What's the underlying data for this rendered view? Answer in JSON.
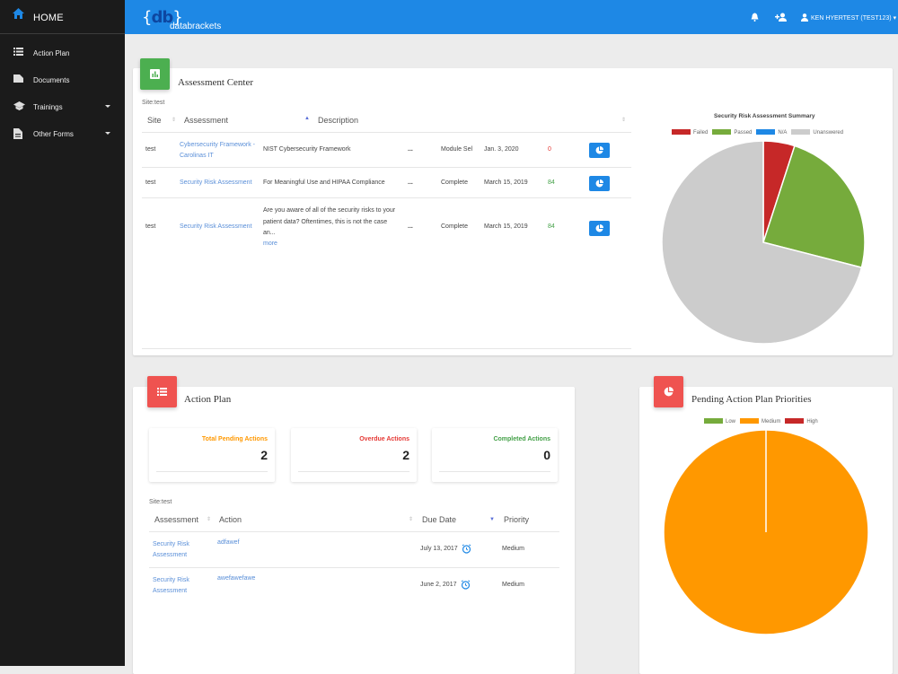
{
  "sidebar": {
    "home_label": "HOME",
    "items": [
      {
        "label": "Action Plan",
        "icon": "list-icon"
      },
      {
        "label": "Documents",
        "icon": "folder-icon"
      },
      {
        "label": "Trainings",
        "icon": "school-icon",
        "has_dropdown": true
      },
      {
        "label": "Other Forms",
        "icon": "document-icon",
        "has_dropdown": true
      }
    ]
  },
  "header": {
    "logo_mark": "db",
    "logo_text": "databrackets",
    "user_label": "KEN HYERTEST (TEST123)",
    "color": "#1e88e5"
  },
  "assessment_center": {
    "title": "Assessment Center",
    "site_label": "Site:",
    "site_value": "test",
    "columns": [
      "Site",
      "Assessment",
      "Description"
    ],
    "rows": [
      {
        "site": "test",
        "assessment": "Cybersecurity Framework - Carolinas IT",
        "description": "NIST Cybersecurity Framework",
        "more": "...",
        "status": "Module Sel",
        "date": "Jan. 3, 2020",
        "score": "0",
        "score_color": "#e53935"
      },
      {
        "site": "test",
        "assessment": "Security Risk Assessment",
        "description": "For Meaningful Use and HIPAA Compliance",
        "more": "...",
        "status": "Complete",
        "date": "March 15, 2019",
        "score": "84",
        "score_color": "#43a047"
      },
      {
        "site": "test",
        "assessment": "Security Risk Assessment",
        "description": "Are you aware of all of the security risks to your patient data? Oftentimes, this is not the case an...",
        "more_link": "more",
        "more": "...",
        "status": "Complete",
        "date": "March 15, 2019",
        "score": "84",
        "score_color": "#43a047"
      }
    ]
  },
  "risk_summary": {
    "title": "Security Risk Assessment Summary",
    "legend": [
      {
        "label": "Failed",
        "color": "#c62828"
      },
      {
        "label": "Passed",
        "color": "#76ab3c"
      },
      {
        "label": "N/A",
        "color": "#1e88e5"
      },
      {
        "label": "Unanswered",
        "color": "#cccccc"
      }
    ]
  },
  "chart_data": [
    {
      "type": "pie",
      "title": "Security Risk Assessment Summary",
      "categories": [
        "Failed",
        "Passed",
        "N/A",
        "Unanswered"
      ],
      "values": [
        5,
        24,
        0,
        71
      ],
      "colors": [
        "#c62828",
        "#76ab3c",
        "#1e88e5",
        "#cccccc"
      ]
    },
    {
      "type": "pie",
      "title": "",
      "categories": [
        "Low",
        "Medium",
        "High"
      ],
      "values": [
        0,
        2,
        0
      ],
      "colors": [
        "#76ab3c",
        "#ff9800",
        "#c62828"
      ]
    }
  ],
  "action_plan": {
    "title": "Action Plan",
    "stats": [
      {
        "label": "Total Pending Actions",
        "value": "2",
        "color": "#ff9800"
      },
      {
        "label": "Overdue Actions",
        "value": "2",
        "color": "#e53935"
      },
      {
        "label": "Completed Actions",
        "value": "0",
        "color": "#43a047"
      }
    ],
    "site_label": "Site:",
    "site_value": "test",
    "columns": [
      "Assessment",
      "Action",
      "Due Date",
      "Priority"
    ],
    "rows": [
      {
        "assessment": "Security Risk Assessment",
        "action": "adfawef",
        "due": "July 13, 2017",
        "priority": "Medium"
      },
      {
        "assessment": "Security Risk Assessment",
        "action": "awefawefawe",
        "due": "June 2, 2017",
        "priority": "Medium"
      }
    ]
  },
  "priorities": {
    "title": "Pending Action Plan Priorities",
    "legend": [
      {
        "label": "Low",
        "color": "#76ab3c"
      },
      {
        "label": "Medium",
        "color": "#ff9800"
      },
      {
        "label": "High",
        "color": "#c62828"
      }
    ]
  }
}
